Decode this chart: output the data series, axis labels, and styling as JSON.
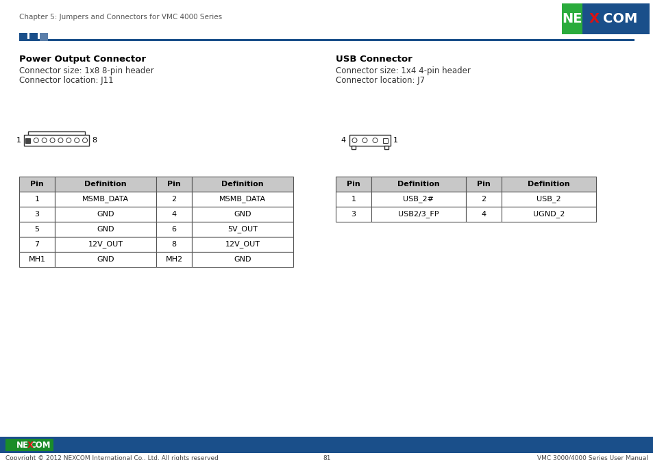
{
  "page_title": "Chapter 5: Jumpers and Connectors for VMC 4000 Series",
  "footer_left": "Copyright © 2012 NEXCOM International Co., Ltd. All rights reserved",
  "footer_center": "81",
  "footer_right": "VMC 3000/4000 Series User Manual",
  "section1_title": "Power Output Connector",
  "section1_line1": "Connector size: 1x8 8-pin header",
  "section1_line2": "Connector location: J11",
  "section2_title": "USB Connector",
  "section2_line1": "Connector size: 1x4 4-pin header",
  "section2_line2": "Connector location: J7",
  "table1_headers": [
    "Pin",
    "Definition",
    "Pin",
    "Definition"
  ],
  "table1_rows": [
    [
      "1",
      "MSMB_DATA",
      "2",
      "MSMB_DATA"
    ],
    [
      "3",
      "GND",
      "4",
      "GND"
    ],
    [
      "5",
      "GND",
      "6",
      "5V_OUT"
    ],
    [
      "7",
      "12V_OUT",
      "8",
      "12V_OUT"
    ],
    [
      "MH1",
      "GND",
      "MH2",
      "GND"
    ]
  ],
  "table2_headers": [
    "Pin",
    "Definition",
    "Pin",
    "Definition"
  ],
  "table2_rows": [
    [
      "1",
      "USB_2#",
      "2",
      "USB_2"
    ],
    [
      "3",
      "USB2/3_FP",
      "4",
      "UGND_2"
    ]
  ],
  "header_blue": "#1a4f8a",
  "nexcom_green": "#2aab3c",
  "table_header_bg": "#c8c8c8",
  "sq1_color": "#1a4f8a",
  "sq2_color": "#1a4f8a",
  "sq3_color": "#5b7faa"
}
